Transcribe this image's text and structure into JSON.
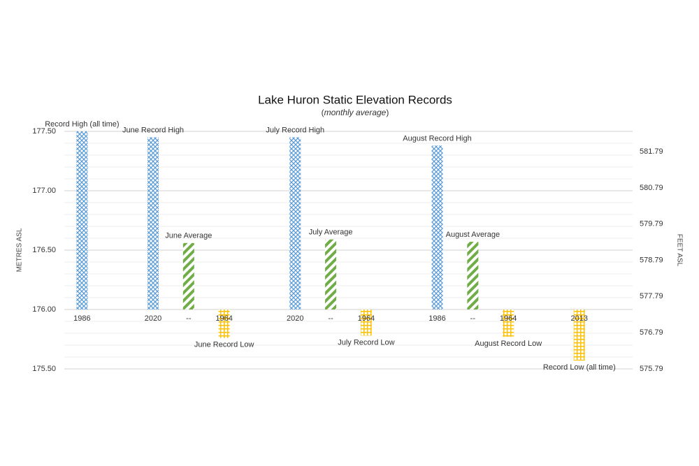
{
  "chart_data": {
    "type": "bar",
    "title": "Lake Huron Static Elevation Records",
    "subtitle": "monthly average",
    "y_label": "METRES ASL",
    "y2_label": "FEET ASL",
    "categories": [
      "1986",
      null,
      "2020",
      "--",
      "1964",
      null,
      "2020",
      "--",
      "1964",
      null,
      "1986",
      "--",
      "1964",
      null,
      "2013",
      null
    ],
    "bar_base": 176.0,
    "series": [
      {
        "color": "#5b9bd5",
        "values": [
          177.5,
          null,
          177.45,
          null,
          null,
          null,
          177.45,
          null,
          null,
          null,
          177.38,
          null,
          null,
          null,
          null,
          null
        ],
        "labels": [
          "Record High (all time)",
          null,
          "June Record High",
          null,
          null,
          null,
          "July Record High",
          null,
          null,
          null,
          "August Record High",
          null,
          null,
          null,
          null,
          null
        ]
      },
      {
        "color": "#70ad47",
        "values": [
          null,
          null,
          null,
          176.56,
          null,
          null,
          null,
          176.59,
          null,
          null,
          null,
          176.57,
          null,
          null,
          null,
          null
        ],
        "labels": [
          null,
          null,
          null,
          "June Average",
          null,
          null,
          null,
          "July Average",
          null,
          null,
          null,
          "August Average",
          null,
          null,
          null,
          null
        ]
      },
      {
        "color": "#ffc000",
        "values": [
          null,
          null,
          null,
          null,
          175.76,
          null,
          null,
          null,
          175.78,
          null,
          null,
          null,
          175.77,
          null,
          175.57,
          null
        ],
        "labels": [
          null,
          null,
          null,
          null,
          "June Record Low",
          null,
          null,
          null,
          "July Record Low",
          null,
          null,
          null,
          "August Record Low",
          null,
          "Record Low (all time)",
          null
        ]
      }
    ],
    "ylim": [
      175.5,
      177.5
    ],
    "yticks": [
      {
        "value": 175.5,
        "label": "175.50"
      },
      {
        "value": 176,
        "label": "176.00"
      },
      {
        "value": 176.5,
        "label": "176.50"
      },
      {
        "value": 177,
        "label": "177.00"
      },
      {
        "value": 177.5,
        "label": "177.50"
      }
    ],
    "minor_yticks": [
      175.6,
      175.7,
      175.8,
      175.9,
      176.1,
      176.2,
      176.3,
      176.4,
      176.6,
      176.7,
      176.8,
      176.9,
      177.1,
      177.2,
      177.3,
      177.4
    ],
    "y2lim": [
      575.79,
      582.35
    ],
    "y2ticks": [
      575.79,
      576.79,
      577.79,
      578.79,
      579.79,
      580.79,
      581.79
    ],
    "grid": true
  }
}
